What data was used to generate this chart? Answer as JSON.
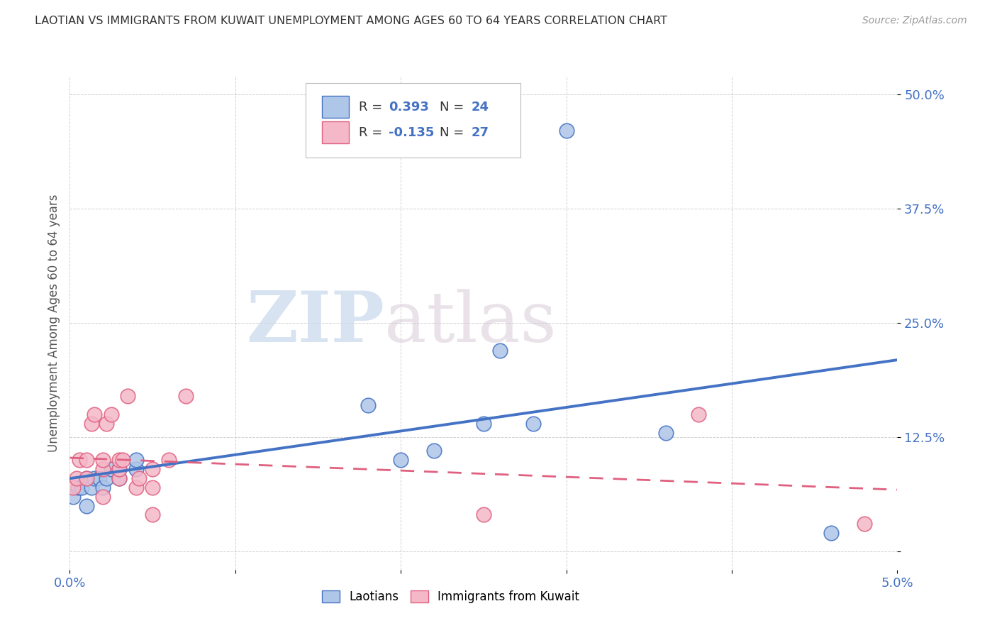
{
  "title": "LAOTIAN VS IMMIGRANTS FROM KUWAIT UNEMPLOYMENT AMONG AGES 60 TO 64 YEARS CORRELATION CHART",
  "source": "Source: ZipAtlas.com",
  "ylabel": "Unemployment Among Ages 60 to 64 years",
  "xlim": [
    0.0,
    0.05
  ],
  "ylim": [
    -0.02,
    0.52
  ],
  "xticks": [
    0.0,
    0.01,
    0.02,
    0.03,
    0.04,
    0.05
  ],
  "xticklabels": [
    "0.0%",
    "",
    "",
    "",
    "",
    "5.0%"
  ],
  "yticks": [
    0.0,
    0.125,
    0.25,
    0.375,
    0.5
  ],
  "yticklabels": [
    "",
    "12.5%",
    "25.0%",
    "37.5%",
    "50.0%"
  ],
  "laotian_R": 0.393,
  "laotian_N": 24,
  "kuwait_R": -0.135,
  "kuwait_N": 27,
  "laotian_color": "#aec6e8",
  "laotian_line_color": "#4472c4",
  "kuwait_color": "#f4b8c8",
  "kuwait_line_color": "#e06080",
  "watermark_zip": "ZIP",
  "watermark_atlas": "atlas",
  "laotian_x": [
    0.0002,
    0.0005,
    0.0007,
    0.001,
    0.001,
    0.0013,
    0.0015,
    0.0018,
    0.002,
    0.0022,
    0.0025,
    0.003,
    0.003,
    0.004,
    0.004,
    0.018,
    0.02,
    0.022,
    0.025,
    0.026,
    0.028,
    0.03,
    0.036,
    0.046
  ],
  "laotian_y": [
    0.06,
    0.07,
    0.07,
    0.05,
    0.08,
    0.07,
    0.08,
    0.08,
    0.07,
    0.08,
    0.09,
    0.08,
    0.09,
    0.09,
    0.1,
    0.16,
    0.1,
    0.11,
    0.14,
    0.22,
    0.14,
    0.46,
    0.13,
    0.02
  ],
  "kuwait_x": [
    0.0002,
    0.0004,
    0.0006,
    0.001,
    0.001,
    0.0013,
    0.0015,
    0.002,
    0.002,
    0.002,
    0.0022,
    0.0025,
    0.003,
    0.003,
    0.003,
    0.0032,
    0.0035,
    0.004,
    0.0042,
    0.005,
    0.005,
    0.005,
    0.006,
    0.007,
    0.025,
    0.038,
    0.048
  ],
  "kuwait_y": [
    0.07,
    0.08,
    0.1,
    0.08,
    0.1,
    0.14,
    0.15,
    0.06,
    0.09,
    0.1,
    0.14,
    0.15,
    0.08,
    0.09,
    0.1,
    0.1,
    0.17,
    0.07,
    0.08,
    0.04,
    0.07,
    0.09,
    0.1,
    0.17,
    0.04,
    0.15,
    0.03
  ]
}
